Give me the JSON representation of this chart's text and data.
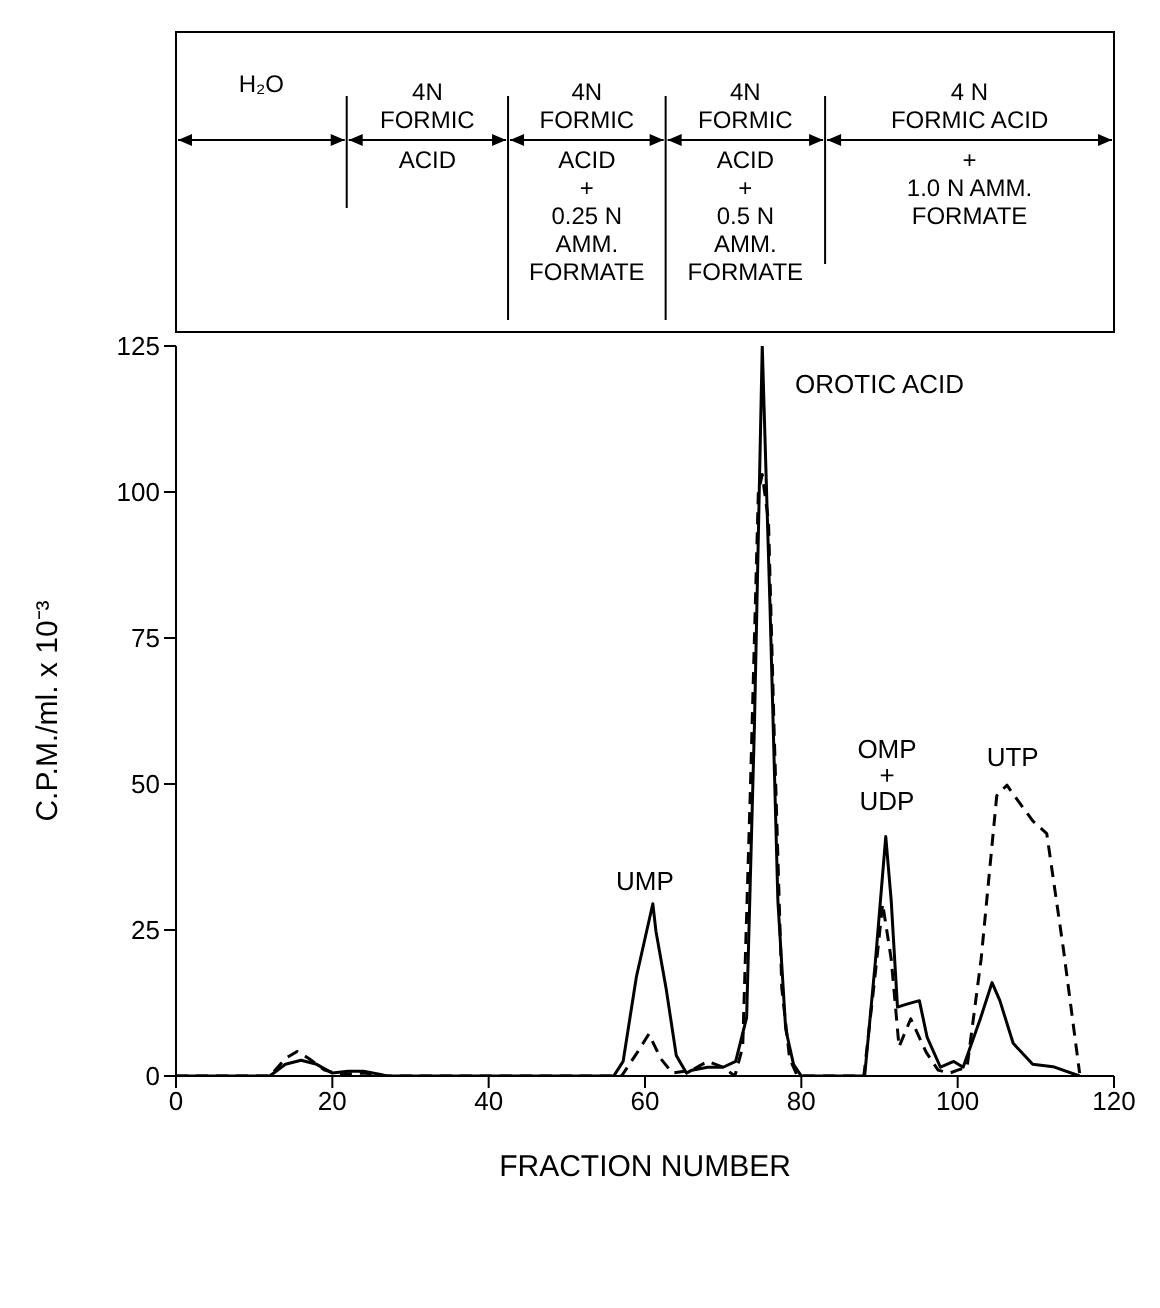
{
  "chart_data": {
    "type": "line",
    "xlabel": "FRACTION NUMBER",
    "ylabel": "C.P.M./ml. x 10⁻³",
    "xlim": [
      0,
      120
    ],
    "xticks": [
      0,
      20,
      40,
      60,
      80,
      100,
      120
    ],
    "ylim": [
      0,
      125
    ],
    "yticks": [
      0,
      25,
      50,
      75,
      100,
      125
    ],
    "marker": "none",
    "series": [
      {
        "color": "#000000",
        "line_style": "solid",
        "x": [
          0,
          12,
          14,
          16,
          18,
          20,
          22,
          24,
          26,
          27,
          50,
          56,
          57.2,
          58.9,
          61,
          61.4,
          62.7,
          64,
          65.3,
          66,
          68,
          70,
          71.6,
          73,
          74,
          75,
          76,
          77,
          78,
          79,
          80,
          86,
          88.1,
          89.5,
          90.8,
          91.5,
          92.3,
          93.5,
          95.1,
          96.1,
          97.8,
          99.5,
          100.7,
          102.9,
          104.4,
          105.4,
          107.1,
          109.6,
          112.2,
          115.6
        ],
        "values": [
          0,
          0,
          2,
          2.7,
          2,
          0.5,
          0.8,
          0.8,
          0.3,
          0,
          0,
          0,
          2.5,
          17,
          29.5,
          24.8,
          15,
          3.5,
          0.5,
          1,
          1.5,
          1.5,
          2.5,
          10,
          60,
          125,
          80,
          30,
          8,
          2,
          0,
          0,
          0,
          20,
          41,
          30,
          11.8,
          12.3,
          12.9,
          6.6,
          1.5,
          2.5,
          1.5,
          9.8,
          16,
          12.9,
          5.6,
          2,
          1.6,
          0
        ]
      },
      {
        "color": "#000000",
        "line_style": "dashed",
        "x": [
          0,
          12,
          14,
          15.5,
          17,
          19,
          21,
          24,
          27,
          50,
          57,
          59,
          60.5,
          62,
          63.5,
          66,
          68,
          70,
          71.5,
          72.5,
          73.5,
          74.5,
          75,
          75.8,
          76.5,
          77.5,
          78.5,
          79.5,
          86,
          88,
          89.5,
          90.4,
          91.5,
          92.5,
          94,
          96,
          97.5,
          99,
          100,
          101.2,
          103,
          105,
          106.3,
          107.9,
          109.6,
          111.4,
          113.5,
          115.6
        ],
        "values": [
          0,
          0,
          3,
          4.2,
          3,
          1,
          0.3,
          0.5,
          0,
          0,
          0,
          4,
          7.2,
          3,
          0.5,
          1,
          2.5,
          1.5,
          0,
          5,
          50,
          100,
          103,
          95,
          60,
          15,
          3,
          0,
          0,
          0,
          18,
          29.5,
          20,
          5,
          9.8,
          4,
          1,
          0.5,
          1,
          1.5,
          20,
          48,
          49.8,
          46.8,
          43.7,
          41.5,
          22,
          0.5
        ]
      }
    ],
    "annotations": [
      "H₂O",
      "4N\nFORMIC\nACID",
      "4N\nFORMIC\nACID\n+\n0.25 N\nAMM.\nFORMATE",
      "4N\nFORMIC\nACID\n+\n0.5 N\nAMM.\nFORMATE",
      "4 N\nFORMIC ACID\n+\n1.0 N AMM.\nFORMATE",
      "UMP",
      "OROTIC ACID",
      "OMP\n+\nUDP",
      "UTP"
    ]
  }
}
